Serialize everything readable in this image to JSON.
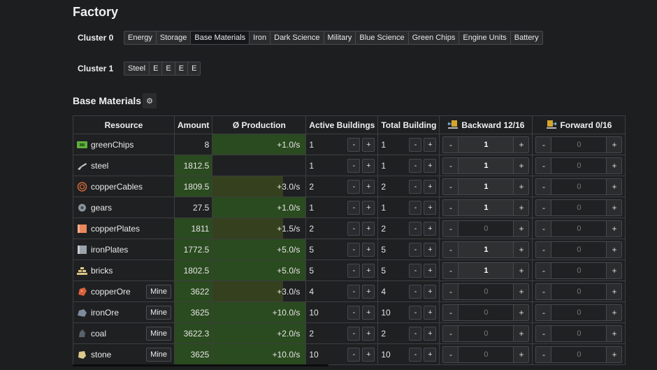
{
  "page": {
    "title": "Factory"
  },
  "clusters": [
    {
      "label": "Cluster 0",
      "tabs": [
        "Energy",
        "Storage",
        "Base Materials",
        "Iron",
        "Dark Science",
        "Military",
        "Blue Science",
        "Green Chips",
        "Engine Units",
        "Battery"
      ],
      "active": "Base Materials"
    },
    {
      "label": "Cluster 1",
      "tabs": [
        "Steel",
        "E",
        "E",
        "E",
        "E"
      ],
      "active": null
    }
  ],
  "section": {
    "title": "Base Materials",
    "settings_icon": "gear-icon"
  },
  "table": {
    "headers": {
      "resource": "Resource",
      "amount": "Amount",
      "production": "Ø Production",
      "active": "Active Buildings",
      "total": "Total Building",
      "backward": "Backward 12/16",
      "forward": "Forward 0/16"
    },
    "mine_label": "Mine",
    "minus": "-",
    "plus": "+",
    "colors": {
      "green": "#2a4a1f",
      "olive": "#39401f",
      "dark": "#1f2022"
    },
    "rows": [
      {
        "name": "greenChips",
        "icon": "green-chip-icon",
        "mine": false,
        "amount": "8",
        "amount_green": false,
        "production": "+1.0/s",
        "prod_pct": 100,
        "prod_color": "#2a4a1f",
        "active": "1",
        "total": "1",
        "backward": "1",
        "forward": "0"
      },
      {
        "name": "steel",
        "icon": "steel-beam-icon",
        "mine": false,
        "amount": "1812.5",
        "amount_green": true,
        "production": "",
        "prod_pct": 0,
        "prod_color": "#2a4a1f",
        "active": "1",
        "total": "1",
        "backward": "1",
        "forward": "0"
      },
      {
        "name": "copperCables",
        "icon": "copper-cable-icon",
        "mine": false,
        "amount": "1809.5",
        "amount_green": true,
        "production": "+3.0/s",
        "prod_pct": 76,
        "prod_color": "#35401e",
        "active": "2",
        "total": "2",
        "backward": "1",
        "forward": "0"
      },
      {
        "name": "gears",
        "icon": "gear-item-icon",
        "mine": false,
        "amount": "27.5",
        "amount_green": false,
        "production": "+1.0/s",
        "prod_pct": 100,
        "prod_color": "#2a4a1f",
        "active": "1",
        "total": "1",
        "backward": "1",
        "forward": "0"
      },
      {
        "name": "copperPlates",
        "icon": "copper-plate-icon",
        "mine": false,
        "amount": "1811",
        "amount_green": true,
        "production": "+1.5/s",
        "prod_pct": 76,
        "prod_color": "#35401e",
        "active": "2",
        "total": "2",
        "backward": "0",
        "forward": "0"
      },
      {
        "name": "ironPlates",
        "icon": "iron-plate-icon",
        "mine": false,
        "amount": "1772.5",
        "amount_green": true,
        "production": "+5.0/s",
        "prod_pct": 100,
        "prod_color": "#2a4a1f",
        "active": "5",
        "total": "5",
        "backward": "1",
        "forward": "0"
      },
      {
        "name": "bricks",
        "icon": "bricks-icon",
        "mine": false,
        "amount": "1802.5",
        "amount_green": true,
        "production": "+5.0/s",
        "prod_pct": 100,
        "prod_color": "#2a4a1f",
        "active": "5",
        "total": "5",
        "backward": "1",
        "forward": "0"
      },
      {
        "name": "copperOre",
        "icon": "copper-ore-icon",
        "mine": true,
        "amount": "3622",
        "amount_green": true,
        "production": "+3.0/s",
        "prod_pct": 76,
        "prod_color": "#35401e",
        "active": "4",
        "total": "4",
        "backward": "0",
        "forward": "0"
      },
      {
        "name": "ironOre",
        "icon": "iron-ore-icon",
        "mine": true,
        "amount": "3625",
        "amount_green": true,
        "production": "+10.0/s",
        "prod_pct": 100,
        "prod_color": "#2a4a1f",
        "active": "10",
        "total": "10",
        "backward": "0",
        "forward": "0"
      },
      {
        "name": "coal",
        "icon": "coal-icon",
        "mine": true,
        "amount": "3622.3",
        "amount_green": true,
        "production": "+2.0/s",
        "prod_pct": 100,
        "prod_color": "#2a4a1f",
        "active": "2",
        "total": "2",
        "backward": "0",
        "forward": "0"
      },
      {
        "name": "stone",
        "icon": "stone-icon",
        "mine": true,
        "amount": "3625",
        "amount_green": true,
        "production": "+10.0/s",
        "prod_pct": 100,
        "prod_color": "#2a4a1f",
        "active": "10",
        "total": "10",
        "backward": "0",
        "forward": "0"
      }
    ]
  }
}
